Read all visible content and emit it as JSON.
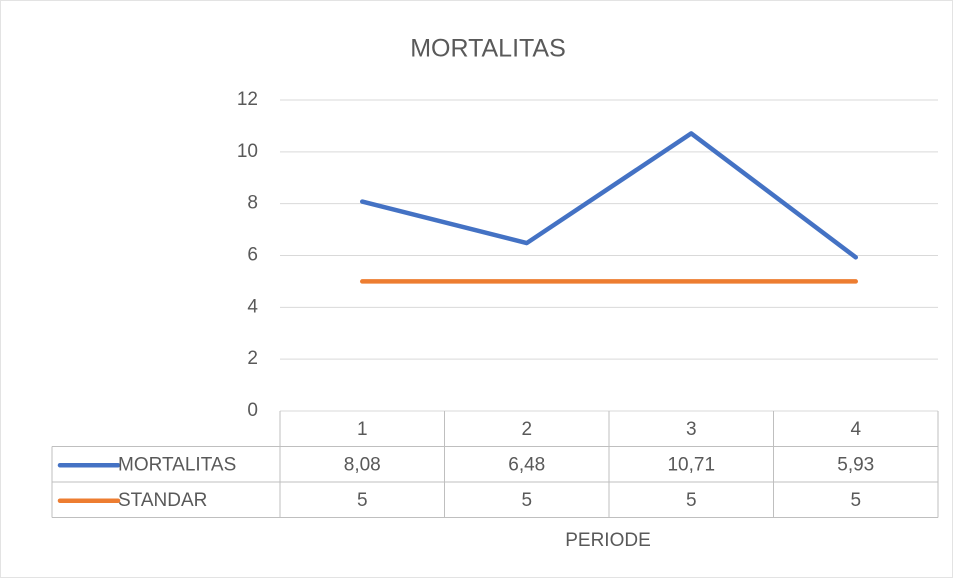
{
  "chart_data": {
    "type": "line",
    "title": "MORTALITAS",
    "x_label": "PERIODE",
    "categories": [
      "1",
      "2",
      "3",
      "4"
    ],
    "series": [
      {
        "name": "MORTALITAS",
        "color": "#4472c4",
        "values": [
          8.08,
          6.48,
          10.71,
          5.93
        ],
        "value_labels": [
          "8,08",
          "6,48",
          "10,71",
          "5,93"
        ]
      },
      {
        "name": "STANDAR",
        "color": "#ed7d31",
        "values": [
          5,
          5,
          5,
          5
        ],
        "value_labels": [
          "5",
          "5",
          "5",
          "5"
        ]
      }
    ],
    "ylim": [
      0,
      12
    ],
    "yticks": [
      0,
      2,
      4,
      6,
      8,
      10,
      12
    ],
    "grid": true,
    "data_table": true
  }
}
